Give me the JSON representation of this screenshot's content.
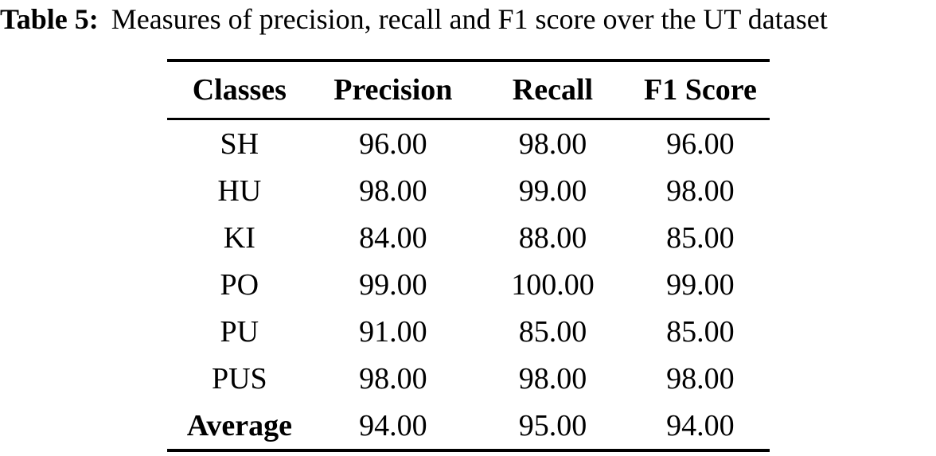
{
  "caption": {
    "label": "Table 5:",
    "text": "Measures of precision, recall and F1 score over the UT dataset"
  },
  "table": {
    "columns": [
      "Classes",
      "Precision",
      "Recall",
      "F1 Score"
    ],
    "rows": [
      [
        "SH",
        "96.00",
        "98.00",
        "96.00"
      ],
      [
        "HU",
        "98.00",
        "99.00",
        "98.00"
      ],
      [
        "KI",
        "84.00",
        "88.00",
        "85.00"
      ],
      [
        "PO",
        "99.00",
        "100.00",
        "99.00"
      ],
      [
        "PU",
        "91.00",
        "85.00",
        "85.00"
      ],
      [
        "PUS",
        "98.00",
        "98.00",
        "98.00"
      ],
      [
        "Average",
        "94.00",
        "95.00",
        "94.00"
      ]
    ]
  },
  "colors": {
    "text": "#000000",
    "background": "#ffffff",
    "rule": "#000000"
  }
}
